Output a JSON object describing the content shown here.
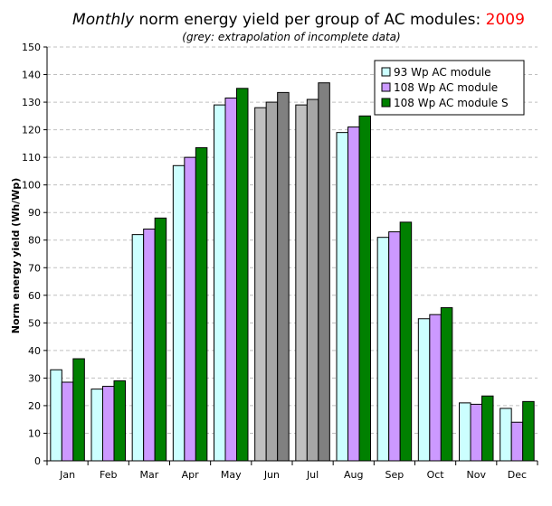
{
  "title": {
    "italic_part": "Monthly",
    "main_part": " norm energy yield per group of AC modules: ",
    "year": "2009"
  },
  "subtitle": "(grey: extrapolation of incomplete data)",
  "colors": {
    "series": [
      "#ccffff",
      "#cc99ff",
      "#008000"
    ],
    "extrapolated": [
      "#c0c0c0",
      "#a6a6a6",
      "#808080"
    ],
    "year": "#ff0000",
    "grid": "#c0c0c0"
  },
  "chart_data": {
    "type": "bar",
    "ylabel": "Norm energy yield (Wh/Wp)",
    "xlabel": "",
    "ylim": [
      0,
      150
    ],
    "yticks": [
      0,
      10,
      20,
      30,
      40,
      50,
      60,
      70,
      80,
      90,
      100,
      110,
      120,
      130,
      140,
      150
    ],
    "grid": true,
    "legend_position": "top-right",
    "categories": [
      "Jan",
      "Feb",
      "Mar",
      "Apr",
      "May",
      "Jun",
      "Jul",
      "Aug",
      "Sep",
      "Oct",
      "Nov",
      "Dec"
    ],
    "extrapolated_months": [
      "Jun",
      "Jul"
    ],
    "series": [
      {
        "name": "93 Wp AC module",
        "values": [
          33,
          26,
          82,
          107,
          129,
          128,
          129,
          119,
          81,
          51.5,
          21,
          19
        ]
      },
      {
        "name": "108 Wp AC module",
        "values": [
          28.5,
          27,
          84,
          110,
          131.5,
          130,
          131,
          121,
          83,
          53,
          20.5,
          14
        ]
      },
      {
        "name": "108 Wp AC module S",
        "values": [
          37,
          29,
          88,
          113.5,
          135,
          133.5,
          137,
          125,
          86.5,
          55.5,
          23.5,
          21.5
        ]
      }
    ]
  }
}
